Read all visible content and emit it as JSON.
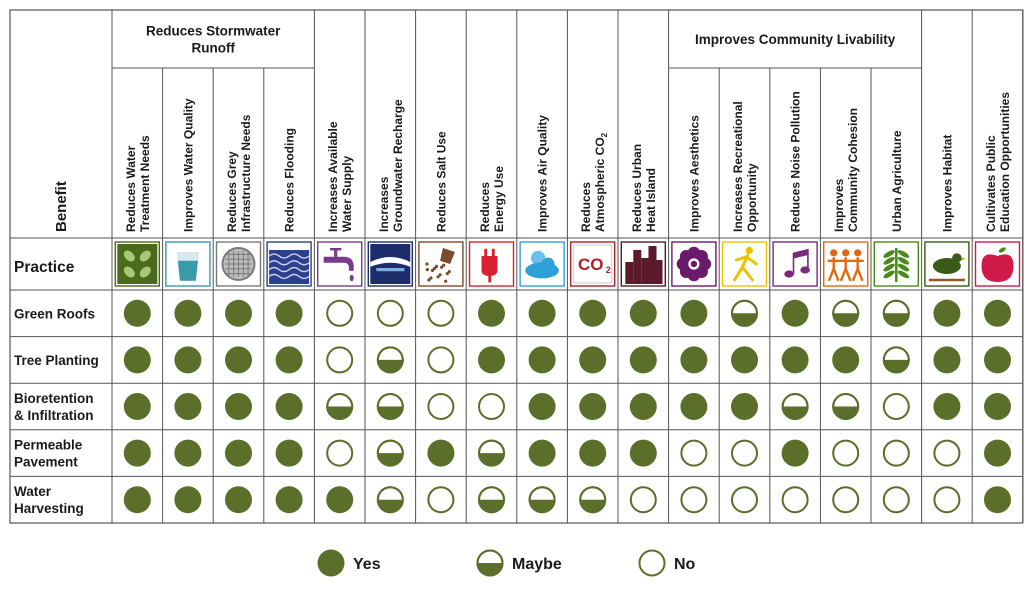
{
  "chart_data": {
    "type": "table",
    "title": "",
    "corner": {
      "benefit_label": "Benefit",
      "practice_label": "Practice"
    },
    "groups": [
      {
        "label": "Reduces Stormwater Runoff",
        "span": [
          0,
          3
        ]
      },
      {
        "label": "Improves Community Livability",
        "span": [
          11,
          15
        ]
      }
    ],
    "benefits": [
      {
        "lines": [
          "Reduces Water",
          "Treatment Needs"
        ],
        "icon": "leaves-icon"
      },
      {
        "lines": [
          "Improves Water Quality"
        ],
        "icon": "water-glass-icon"
      },
      {
        "lines": [
          "Reduces Grey",
          "Infrastructure Needs"
        ],
        "icon": "manhole-icon"
      },
      {
        "lines": [
          "Reduces Flooding"
        ],
        "icon": "waves-icon"
      },
      {
        "lines": [
          "Increases Available",
          "Water Supply"
        ],
        "icon": "faucet-icon"
      },
      {
        "lines": [
          "Increases",
          "Groundwater Recharge"
        ],
        "icon": "groundwater-icon"
      },
      {
        "lines": [
          "Reduces Salt Use"
        ],
        "icon": "salt-icon"
      },
      {
        "lines": [
          "Reduces",
          "Energy Use"
        ],
        "icon": "plug-icon"
      },
      {
        "lines": [
          "Improves Air Quality"
        ],
        "icon": "cloud-sun-icon"
      },
      {
        "lines": [
          "Reduces",
          "Atmospheric CO2"
        ],
        "icon": "co2-icon"
      },
      {
        "lines": [
          "Reduces Urban",
          "Heat Island"
        ],
        "icon": "city-icon"
      },
      {
        "lines": [
          "Improves Aesthetics"
        ],
        "icon": "flower-icon"
      },
      {
        "lines": [
          "Increases Recreational",
          "Opportunity"
        ],
        "icon": "runner-icon"
      },
      {
        "lines": [
          "Reduces Noise Pollution"
        ],
        "icon": "music-note-icon"
      },
      {
        "lines": [
          "Improves",
          "Community Cohesion"
        ],
        "icon": "people-icon"
      },
      {
        "lines": [
          "Urban Agriculture"
        ],
        "icon": "plant-icon"
      },
      {
        "lines": [
          "Improves Habitat"
        ],
        "icon": "bird-icon"
      },
      {
        "lines": [
          "Cultivates Public",
          "Education Opportunities"
        ],
        "icon": "apple-icon"
      }
    ],
    "practices": [
      {
        "lines": [
          "Green Roofs"
        ],
        "values": [
          "Yes",
          "Yes",
          "Yes",
          "Yes",
          "No",
          "No",
          "No",
          "Yes",
          "Yes",
          "Yes",
          "Yes",
          "Yes",
          "Maybe",
          "Yes",
          "Maybe",
          "Maybe",
          "Yes",
          "Yes"
        ]
      },
      {
        "lines": [
          "Tree Planting"
        ],
        "values": [
          "Yes",
          "Yes",
          "Yes",
          "Yes",
          "No",
          "Maybe",
          "No",
          "Yes",
          "Yes",
          "Yes",
          "Yes",
          "Yes",
          "Yes",
          "Yes",
          "Yes",
          "Maybe",
          "Yes",
          "Yes"
        ]
      },
      {
        "lines": [
          "Bioretention",
          "& Infiltration"
        ],
        "values": [
          "Yes",
          "Yes",
          "Yes",
          "Yes",
          "Maybe",
          "Maybe",
          "No",
          "No",
          "Yes",
          "Yes",
          "Yes",
          "Yes",
          "Yes",
          "Maybe",
          "Maybe",
          "No",
          "Yes",
          "Yes"
        ]
      },
      {
        "lines": [
          "Permeable",
          "Pavement"
        ],
        "values": [
          "Yes",
          "Yes",
          "Yes",
          "Yes",
          "No",
          "Maybe",
          "Yes",
          "Maybe",
          "Yes",
          "Yes",
          "Yes",
          "No",
          "No",
          "Yes",
          "No",
          "No",
          "No",
          "Yes"
        ]
      },
      {
        "lines": [
          "Water",
          "Harvesting"
        ],
        "values": [
          "Yes",
          "Yes",
          "Yes",
          "Yes",
          "Yes",
          "Maybe",
          "No",
          "Maybe",
          "Maybe",
          "Maybe",
          "No",
          "No",
          "No",
          "No",
          "No",
          "No",
          "No",
          "Yes"
        ]
      }
    ],
    "legend": [
      {
        "key": "Yes",
        "label": "Yes"
      },
      {
        "key": "Maybe",
        "label": "Maybe"
      },
      {
        "key": "No",
        "label": "No"
      }
    ],
    "colors": {
      "mark": "#5b6e2a",
      "grid": "#555555",
      "text": "#1a1a1a"
    }
  }
}
